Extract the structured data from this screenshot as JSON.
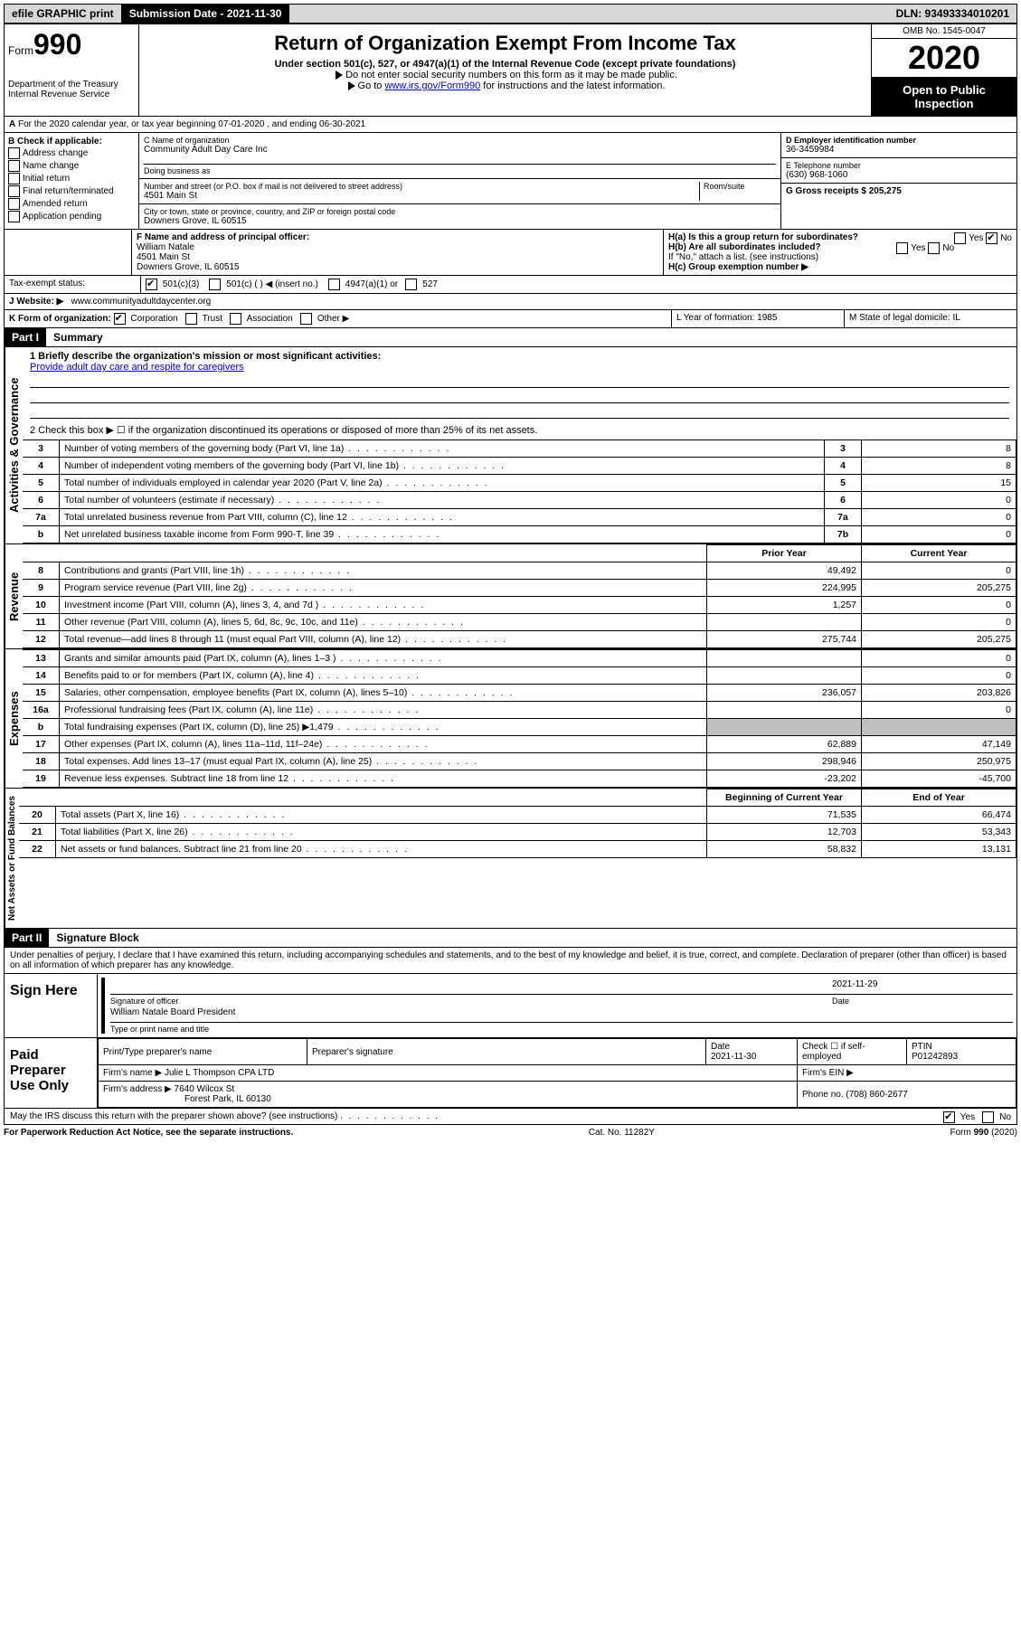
{
  "topbar": {
    "efile": "efile GRAPHIC print",
    "submission_label": "Submission Date - 2021-11-30",
    "dln": "DLN: 93493334010201"
  },
  "header": {
    "form_label": "Form",
    "form_number": "990",
    "dept": "Department of the Treasury\nInternal Revenue Service",
    "title": "Return of Organization Exempt From Income Tax",
    "subtitle": "Under section 501(c), 527, or 4947(a)(1) of the Internal Revenue Code (except private foundations)",
    "note1": "Do not enter social security numbers on this form as it may be made public.",
    "note2_pre": "Go to ",
    "note2_link": "www.irs.gov/Form990",
    "note2_post": " for instructions and the latest information.",
    "omb": "OMB No. 1545-0047",
    "year": "2020",
    "inspection": "Open to Public Inspection"
  },
  "line_a": "For the 2020 calendar year, or tax year beginning 07-01-2020    , and ending 06-30-2021",
  "section_b": {
    "title": "B Check if applicable:",
    "opts": [
      "Address change",
      "Name change",
      "Initial return",
      "Final return/terminated",
      "Amended return",
      "Application pending"
    ]
  },
  "section_c": {
    "name_label": "C Name of organization",
    "name": "Community Adult Day Care Inc",
    "dba_label": "Doing business as",
    "addr_label": "Number and street (or P.O. box if mail is not delivered to street address)",
    "room_label": "Room/suite",
    "addr": "4501 Main St",
    "city_label": "City or town, state or province, country, and ZIP or foreign postal code",
    "city": "Downers Grove, IL  60515"
  },
  "section_d": {
    "ein_label": "D Employer identification number",
    "ein": "36-3459984",
    "phone_label": "E Telephone number",
    "phone": "(630) 968-1060",
    "gross_label": "G Gross receipts $ 205,275"
  },
  "section_f": {
    "label": "F  Name and address of principal officer:",
    "name": "William Natale",
    "addr1": "4501 Main St",
    "addr2": "Downers Grove, IL  60515"
  },
  "section_h": {
    "ha": "H(a)  Is this a group return for subordinates?",
    "hb": "H(b)  Are all subordinates included?",
    "hb_note": "If \"No,\" attach a list. (see instructions)",
    "hc": "H(c)  Group exemption number ▶"
  },
  "tax_exempt": {
    "label": "Tax-exempt status:",
    "opt1": "501(c)(3)",
    "opt2": "501(c) (  ) ◀ (insert no.)",
    "opt3": "4947(a)(1) or",
    "opt4": "527"
  },
  "website": {
    "label": "J   Website: ▶",
    "value": "www.communityadultdaycenter.org"
  },
  "section_k": {
    "label": "K Form of organization:",
    "opts": [
      "Corporation",
      "Trust",
      "Association",
      "Other ▶"
    ]
  },
  "section_l": {
    "label": "L Year of formation: 1985"
  },
  "section_m": {
    "label": "M State of legal domicile: IL"
  },
  "part1": {
    "header": "Part I",
    "title": "Summary",
    "q1_label": "1  Briefly describe the organization's mission or most significant activities:",
    "q1_value": "Provide adult day care and respite for caregivers",
    "q2": "2   Check this box ▶ ☐  if the organization discontinued its operations or disposed of more than 25% of its net assets.",
    "rows_gov": [
      {
        "n": "3",
        "label": "Number of voting members of the governing body (Part VI, line 1a)",
        "box": "3",
        "val": "8"
      },
      {
        "n": "4",
        "label": "Number of independent voting members of the governing body (Part VI, line 1b)",
        "box": "4",
        "val": "8"
      },
      {
        "n": "5",
        "label": "Total number of individuals employed in calendar year 2020 (Part V, line 2a)",
        "box": "5",
        "val": "15"
      },
      {
        "n": "6",
        "label": "Total number of volunteers (estimate if necessary)",
        "box": "6",
        "val": "0"
      },
      {
        "n": "7a",
        "label": "Total unrelated business revenue from Part VIII, column (C), line 12",
        "box": "7a",
        "val": "0"
      },
      {
        "n": "b",
        "label": "Net unrelated business taxable income from Form 990-T, line 39",
        "box": "7b",
        "val": "0"
      }
    ],
    "col_prior": "Prior Year",
    "col_current": "Current Year",
    "rows_rev": [
      {
        "n": "8",
        "label": "Contributions and grants (Part VIII, line 1h)",
        "prior": "49,492",
        "cur": "0"
      },
      {
        "n": "9",
        "label": "Program service revenue (Part VIII, line 2g)",
        "prior": "224,995",
        "cur": "205,275"
      },
      {
        "n": "10",
        "label": "Investment income (Part VIII, column (A), lines 3, 4, and 7d )",
        "prior": "1,257",
        "cur": "0"
      },
      {
        "n": "11",
        "label": "Other revenue (Part VIII, column (A), lines 5, 6d, 8c, 9c, 10c, and 11e)",
        "prior": "",
        "cur": "0"
      },
      {
        "n": "12",
        "label": "Total revenue—add lines 8 through 11 (must equal Part VIII, column (A), line 12)",
        "prior": "275,744",
        "cur": "205,275"
      }
    ],
    "rows_exp": [
      {
        "n": "13",
        "label": "Grants and similar amounts paid (Part IX, column (A), lines 1–3 )",
        "prior": "",
        "cur": "0"
      },
      {
        "n": "14",
        "label": "Benefits paid to or for members (Part IX, column (A), line 4)",
        "prior": "",
        "cur": "0"
      },
      {
        "n": "15",
        "label": "Salaries, other compensation, employee benefits (Part IX, column (A), lines 5–10)",
        "prior": "236,057",
        "cur": "203,826"
      },
      {
        "n": "16a",
        "label": "Professional fundraising fees (Part IX, column (A), line 11e)",
        "prior": "",
        "cur": "0"
      },
      {
        "n": "b",
        "label": "Total fundraising expenses (Part IX, column (D), line 25) ▶1,479",
        "prior": "SHADE",
        "cur": "SHADE"
      },
      {
        "n": "17",
        "label": "Other expenses (Part IX, column (A), lines 11a–11d, 11f–24e)",
        "prior": "62,889",
        "cur": "47,149"
      },
      {
        "n": "18",
        "label": "Total expenses. Add lines 13–17 (must equal Part IX, column (A), line 25)",
        "prior": "298,946",
        "cur": "250,975"
      },
      {
        "n": "19",
        "label": "Revenue less expenses. Subtract line 18 from line 12",
        "prior": "-23,202",
        "cur": "-45,700"
      }
    ],
    "col_begin": "Beginning of Current Year",
    "col_end": "End of Year",
    "rows_net": [
      {
        "n": "20",
        "label": "Total assets (Part X, line 16)",
        "prior": "71,535",
        "cur": "66,474"
      },
      {
        "n": "21",
        "label": "Total liabilities (Part X, line 26)",
        "prior": "12,703",
        "cur": "53,343"
      },
      {
        "n": "22",
        "label": "Net assets or fund balances. Subtract line 21 from line 20",
        "prior": "58,832",
        "cur": "13,131"
      }
    ],
    "vtab_gov": "Activities & Governance",
    "vtab_rev": "Revenue",
    "vtab_exp": "Expenses",
    "vtab_net": "Net Assets or Fund Balances"
  },
  "part2": {
    "header": "Part II",
    "title": "Signature Block",
    "penalty": "Under penalties of perjury, I declare that I have examined this return, including accompanying schedules and statements, and to the best of my knowledge and belief, it is true, correct, and complete. Declaration of preparer (other than officer) is based on all information of which preparer has any knowledge.",
    "sign_here": "Sign Here",
    "sig_officer": "Signature of officer",
    "sig_date": "2021-11-29",
    "sig_date_label": "Date",
    "sig_name": "William Natale  Board President",
    "sig_name_label": "Type or print name and title",
    "paid_prep": "Paid Preparer Use Only",
    "prep_name_label": "Print/Type preparer's name",
    "prep_sig_label": "Preparer's signature",
    "prep_date_label": "Date",
    "prep_date": "2021-11-30",
    "prep_check": "Check ☐ if self-employed",
    "ptin_label": "PTIN",
    "ptin": "P01242893",
    "firm_name_label": "Firm's name     ▶",
    "firm_name": "Julie L Thompson CPA LTD",
    "firm_ein_label": "Firm's EIN ▶",
    "firm_addr_label": "Firm's address ▶",
    "firm_addr1": "7640 Wilcox St",
    "firm_addr2": "Forest Park, IL  60130",
    "firm_phone_label": "Phone no. (708) 860-2677",
    "discuss": "May the IRS discuss this return with the preparer shown above? (see instructions)"
  },
  "footer": {
    "left": "For Paperwork Reduction Act Notice, see the separate instructions.",
    "mid": "Cat. No. 11282Y",
    "right": "Form 990 (2020)"
  }
}
